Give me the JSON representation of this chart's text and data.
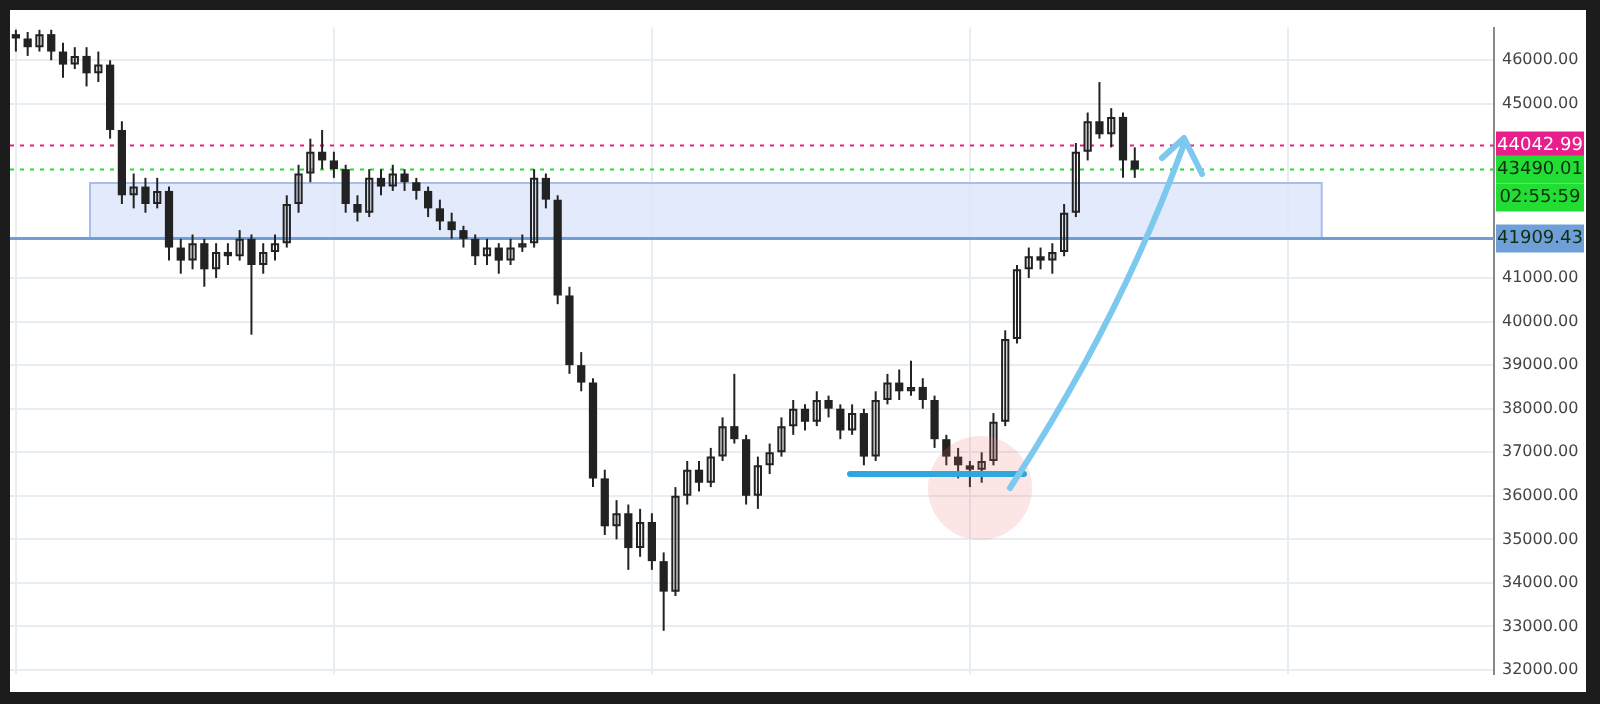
{
  "chart_data": {
    "type": "candlestick",
    "color": "#222222",
    "categories": [
      null,
      null,
      null,
      null,
      null,
      null,
      null,
      null,
      null,
      null,
      null,
      null,
      null,
      null,
      null,
      null,
      null,
      null,
      null,
      null,
      null,
      null,
      null,
      null,
      null,
      null,
      null,
      null,
      null,
      null,
      null,
      null,
      null,
      null,
      null,
      null,
      null,
      null,
      null,
      null,
      null,
      null,
      null,
      null,
      null,
      null,
      null,
      null,
      null,
      null,
      null,
      null,
      null,
      null,
      null,
      null,
      null,
      null,
      null,
      null,
      null,
      null,
      null,
      null,
      null,
      null,
      null,
      null,
      null,
      null,
      null,
      null,
      null,
      null,
      null,
      null,
      null,
      null,
      null,
      null,
      null,
      null,
      null,
      null,
      null,
      null,
      null,
      null,
      null,
      null,
      null,
      null,
      null,
      null,
      null,
      null,
      null,
      null,
      null,
      null,
      null,
      null,
      null,
      null,
      null,
      null,
      null,
      null,
      null,
      null,
      null,
      null,
      null,
      null,
      null,
      null,
      null,
      null,
      null,
      null,
      null,
      null,
      null,
      null,
      null,
      null
    ],
    "ohlc": [
      [
        46600,
        46700,
        46200,
        46500
      ],
      [
        46500,
        46650,
        46100,
        46300
      ],
      [
        46300,
        46700,
        46200,
        46600
      ],
      [
        46600,
        46700,
        46000,
        46200
      ],
      [
        46200,
        46400,
        45600,
        45900
      ],
      [
        45900,
        46300,
        45800,
        46100
      ],
      [
        46100,
        46300,
        45400,
        45700
      ],
      [
        45700,
        46200,
        45500,
        45900
      ],
      [
        45900,
        46000,
        44200,
        44400
      ],
      [
        44400,
        44600,
        42700,
        42900
      ],
      [
        42900,
        43400,
        42600,
        43100
      ],
      [
        43100,
        43300,
        42500,
        42700
      ],
      [
        42700,
        43300,
        42600,
        43000
      ],
      [
        43000,
        43100,
        41400,
        41700
      ],
      [
        41700,
        41900,
        41100,
        41400
      ],
      [
        41400,
        42000,
        41200,
        41800
      ],
      [
        41800,
        41900,
        40800,
        41200
      ],
      [
        41200,
        41800,
        41000,
        41600
      ],
      [
        41600,
        41800,
        41300,
        41500
      ],
      [
        41500,
        42100,
        41400,
        41900
      ],
      [
        41900,
        42000,
        39700,
        41300
      ],
      [
        41300,
        41800,
        41100,
        41600
      ],
      [
        41600,
        42000,
        41400,
        41800
      ],
      [
        41800,
        42900,
        41700,
        42700
      ],
      [
        42700,
        43600,
        42500,
        43400
      ],
      [
        43400,
        44200,
        43200,
        43900
      ],
      [
        43900,
        44400,
        43500,
        43700
      ],
      [
        43700,
        43900,
        43300,
        43500
      ],
      [
        43500,
        43600,
        42500,
        42700
      ],
      [
        42700,
        42900,
        42300,
        42500
      ],
      [
        42500,
        43500,
        42400,
        43300
      ],
      [
        43300,
        43500,
        42900,
        43100
      ],
      [
        43100,
        43600,
        43000,
        43400
      ],
      [
        43400,
        43500,
        43000,
        43200
      ],
      [
        43200,
        43300,
        42800,
        43000
      ],
      [
        43000,
        43100,
        42400,
        42600
      ],
      [
        42600,
        42800,
        42100,
        42300
      ],
      [
        42300,
        42500,
        41900,
        42100
      ],
      [
        42100,
        42200,
        41700,
        41900
      ],
      [
        41900,
        42000,
        41300,
        41500
      ],
      [
        41500,
        41900,
        41300,
        41700
      ],
      [
        41700,
        41800,
        41100,
        41400
      ],
      [
        41400,
        41900,
        41300,
        41700
      ],
      [
        41700,
        42000,
        41600,
        41800
      ],
      [
        41800,
        43500,
        41700,
        43300
      ],
      [
        43300,
        43400,
        42600,
        42800
      ],
      [
        42800,
        42900,
        40400,
        40600
      ],
      [
        40600,
        40800,
        38800,
        39000
      ],
      [
        39000,
        39300,
        38400,
        38600
      ],
      [
        38600,
        38700,
        36200,
        36400
      ],
      [
        36400,
        36600,
        35100,
        35300
      ],
      [
        35300,
        35900,
        35000,
        35600
      ],
      [
        35600,
        35800,
        34300,
        34800
      ],
      [
        34800,
        35700,
        34600,
        35400
      ],
      [
        35400,
        35600,
        34300,
        34500
      ],
      [
        34500,
        34700,
        32900,
        33800
      ],
      [
        33800,
        36200,
        33700,
        36000
      ],
      [
        36000,
        36800,
        35800,
        36600
      ],
      [
        36600,
        36800,
        36100,
        36300
      ],
      [
        36300,
        37100,
        36200,
        36900
      ],
      [
        36900,
        37800,
        36800,
        37600
      ],
      [
        37600,
        38800,
        37200,
        37300
      ],
      [
        37300,
        37400,
        35800,
        36000
      ],
      [
        36000,
        36900,
        35700,
        36700
      ],
      [
        36700,
        37200,
        36500,
        37000
      ],
      [
        37000,
        37800,
        36900,
        37600
      ],
      [
        37600,
        38200,
        37400,
        38000
      ],
      [
        38000,
        38100,
        37500,
        37700
      ],
      [
        37700,
        38400,
        37600,
        38200
      ],
      [
        38200,
        38300,
        37800,
        38000
      ],
      [
        38000,
        38100,
        37300,
        37500
      ],
      [
        37500,
        38100,
        37400,
        37900
      ],
      [
        37900,
        38000,
        36700,
        36900
      ],
      [
        36900,
        38400,
        36800,
        38200
      ],
      [
        38200,
        38800,
        38100,
        38600
      ],
      [
        38600,
        38900,
        38200,
        38400
      ],
      [
        38400,
        39100,
        38300,
        38500
      ],
      [
        38500,
        38700,
        38000,
        38200
      ],
      [
        38200,
        38300,
        37100,
        37300
      ],
      [
        37300,
        37400,
        36700,
        36900
      ],
      [
        36900,
        37100,
        36400,
        36700
      ],
      [
        36700,
        36800,
        36200,
        36600
      ],
      [
        36600,
        37000,
        36300,
        36800
      ],
      [
        36800,
        37900,
        36700,
        37700
      ],
      [
        37700,
        39800,
        37600,
        39600
      ],
      [
        39600,
        41300,
        39500,
        41200
      ],
      [
        41200,
        41700,
        41000,
        41500
      ],
      [
        41500,
        41700,
        41200,
        41400
      ],
      [
        41400,
        41800,
        41100,
        41600
      ],
      [
        41600,
        42700,
        41500,
        42500
      ],
      [
        42500,
        44100,
        42400,
        43900
      ],
      [
        43900,
        44800,
        43700,
        44600
      ],
      [
        44600,
        45500,
        44200,
        44300
      ],
      [
        44300,
        44900,
        44000,
        44700
      ],
      [
        44700,
        44800,
        43300,
        43700
      ],
      [
        43700,
        44000,
        43300,
        43490
      ],
      null,
      null,
      null,
      null,
      null,
      null,
      null,
      null,
      null,
      null,
      null,
      null,
      null,
      null,
      null,
      null,
      null,
      null,
      null,
      null,
      null,
      null,
      null,
      null,
      null,
      null,
      null,
      null,
      null,
      null
    ],
    "ylim": [
      31900,
      46750
    ],
    "yticks": [
      {
        "value": 32000,
        "label": "32000.00"
      },
      {
        "value": 33000,
        "label": "33000.00"
      },
      {
        "value": 34000,
        "label": "34000.00"
      },
      {
        "value": 35000,
        "label": "35000.00"
      },
      {
        "value": 36000,
        "label": "36000.00"
      },
      {
        "value": 37000,
        "label": "37000.00"
      },
      {
        "value": 38000,
        "label": "38000.00"
      },
      {
        "value": 39000,
        "label": "39000.00"
      },
      {
        "value": 40000,
        "label": "40000.00"
      },
      {
        "value": 41000,
        "label": "41000.00"
      },
      {
        "value": 45000,
        "label": "45000.00"
      },
      {
        "value": 46000,
        "label": "46000.00"
      }
    ],
    "ref_lines": [
      {
        "axis": "y",
        "value": 44042.99,
        "label": "44042.99",
        "color": "#e91e8c",
        "line_style": "dotted"
      },
      {
        "axis": "y",
        "value": 43490.01,
        "label": "43490.01",
        "color": "#22dd33",
        "line_style": "dotted"
      },
      {
        "axis": "y",
        "value": 41909.43,
        "label": "41909.43",
        "color": "#6f9fd8",
        "line_style": "solid"
      }
    ],
    "bands": [
      {
        "axis": "y",
        "from": 41909.43,
        "to": 43180,
        "color": "#dde6fb"
      }
    ],
    "annotations": [
      "02:55:59"
    ],
    "grid": true,
    "legend": false,
    "tick_labels": "y"
  }
}
